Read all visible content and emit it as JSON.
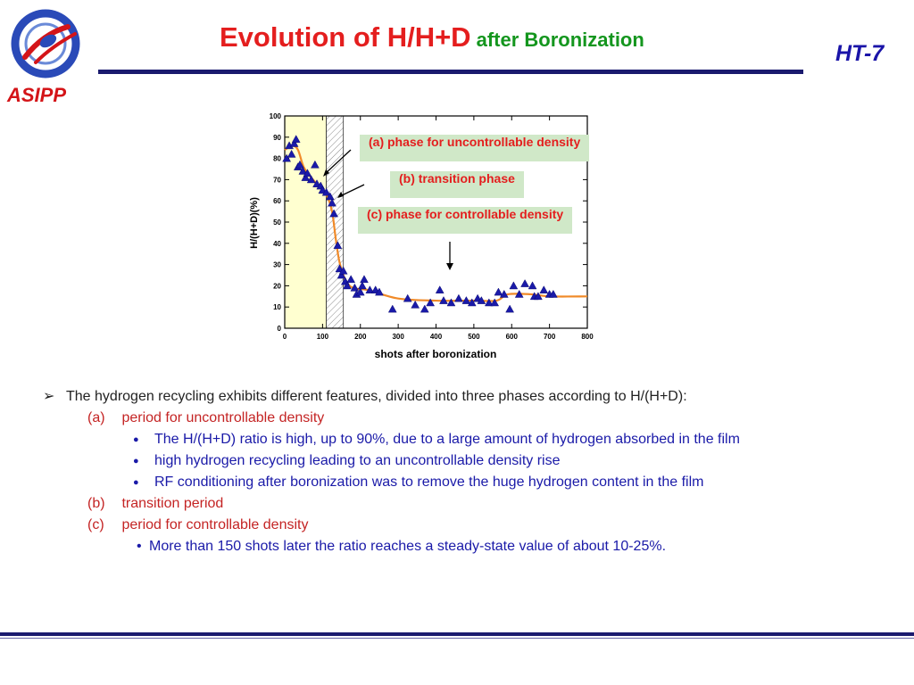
{
  "slide": {
    "title_main": "Evolution of H/H+D",
    "title_sub": "after Boronization",
    "tag": "HT-7",
    "logo_text": "ASIPP",
    "logo_icon": "asipp-logo-icon",
    "colors": {
      "title": "#e41e1e",
      "subtitle": "#14961e",
      "accent": "#1a14a8",
      "rule": "#1a1a6e"
    }
  },
  "annotations": {
    "a": "(a) phase for uncontrollable density",
    "b": "(b) transition phase",
    "c": "(c) phase for controllable density"
  },
  "chart_data": {
    "type": "scatter",
    "title": "",
    "xlabel": "shots after boronization",
    "ylabel": "H/(H+D)(%)",
    "xlim": [
      0,
      800
    ],
    "ylim": [
      0,
      100
    ],
    "xticks": [
      "0",
      "100",
      "200",
      "300",
      "400",
      "500",
      "600",
      "700",
      "800"
    ],
    "yticks": [
      "0",
      "10",
      "20",
      "30",
      "40",
      "50",
      "60",
      "70",
      "80",
      "90",
      "100"
    ],
    "grid": false,
    "regions": [
      {
        "x_from": 0,
        "x_to": 110,
        "fill": "#ffffd0"
      },
      {
        "x_from": 110,
        "x_to": 155,
        "fill": "hatched"
      }
    ],
    "series": [
      {
        "marker": "triangle",
        "color": "#1a1aa8",
        "x": [
          5,
          12,
          18,
          25,
          30,
          35,
          40,
          48,
          55,
          60,
          70,
          80,
          85,
          95,
          100,
          110,
          120,
          125,
          130,
          140,
          145,
          150,
          155,
          160,
          165,
          175,
          185,
          190,
          200,
          205,
          210,
          225,
          240,
          250,
          285,
          325,
          345,
          370,
          385,
          410,
          420,
          440,
          460,
          480,
          495,
          510,
          520,
          540,
          555,
          565,
          580,
          595,
          605,
          620,
          635,
          655,
          660,
          670,
          685,
          700,
          710
        ],
        "y": [
          80,
          86,
          82,
          87,
          89,
          76,
          77,
          74,
          71,
          73,
          70,
          77,
          68,
          67,
          65,
          64,
          62,
          59,
          54,
          39,
          28,
          25,
          27,
          22,
          20,
          23,
          19,
          16,
          17,
          20,
          23,
          18,
          18,
          17,
          9,
          14,
          11,
          9,
          12,
          18,
          13,
          12,
          14,
          13,
          12,
          14,
          13,
          12,
          12,
          17,
          16,
          9,
          20,
          16,
          21,
          20,
          15,
          15,
          18,
          16,
          16
        ]
      },
      {
        "type": "line",
        "color": "#f08a28",
        "x": [
          0,
          20,
          35,
          50,
          70,
          90,
          110,
          125,
          135,
          145,
          160,
          180,
          220,
          300,
          400,
          500,
          560,
          590,
          650,
          700,
          800
        ],
        "y": [
          84,
          86,
          84,
          76,
          71,
          67,
          63,
          55,
          42,
          31,
          23,
          19,
          18,
          14,
          13,
          13,
          13,
          16,
          16,
          15,
          15
        ]
      }
    ]
  },
  "bullets": {
    "intro_mark": "➢",
    "intro": "The hydrogen recycling exhibits different features, divided into three phases according to H/(H+D):",
    "a_label": "(a)",
    "a_text": "period for uncontrollable density",
    "a_items": [
      "The H/(H+D) ratio  is high, up to 90%, due to a large amount of hydrogen absorbed in the film",
      "high hydrogen recycling leading to an uncontrollable density rise",
      "RF conditioning after boronization was to remove the huge hydrogen content in the film"
    ],
    "b_label": "(b)",
    "b_text": "transition period",
    "c_label": "(c)",
    "c_text": "period for controllable density",
    "c_items": [
      "More than 150 shots later the ratio reaches a steady-state value of about 10-25%."
    ]
  }
}
